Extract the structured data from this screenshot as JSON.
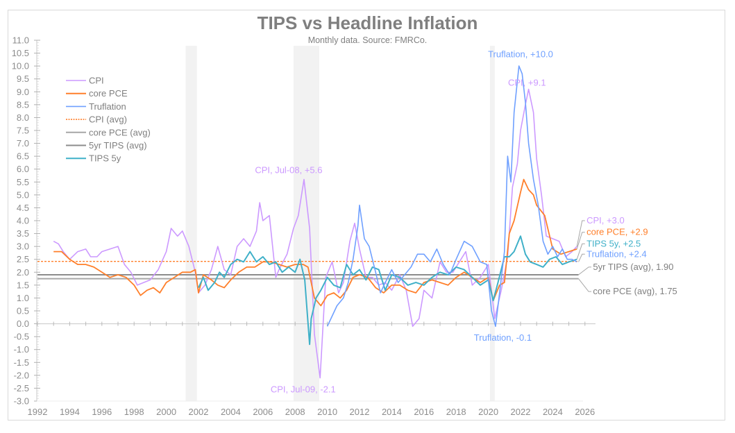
{
  "chart_data": {
    "type": "line",
    "title": "TIPS vs Headline Inflation",
    "subtitle": "Monthly data. Source: FMRCo.",
    "xlabel": "",
    "ylabel": "",
    "xlim": [
      1992,
      2027
    ],
    "ylim": [
      -3.0,
      11.0
    ],
    "y_ticks": [
      "11.0",
      "10.5",
      "10.0",
      "9.5",
      "9.0",
      "8.5",
      "8.0",
      "7.5",
      "7.0",
      "6.5",
      "6.0",
      "5.5",
      "5.0",
      "4.5",
      "4.0",
      "3.5",
      "3.0",
      "2.5",
      "2.0",
      "1.5",
      "1.0",
      "0.5",
      "0.0",
      "-0.5",
      "-1.0",
      "-1.5",
      "-2.0",
      "-2.5",
      "-3.0"
    ],
    "x_ticks": [
      "1992",
      "1994",
      "1996",
      "1998",
      "2000",
      "2002",
      "2004",
      "2006",
      "2008",
      "2010",
      "2012",
      "2014",
      "2016",
      "2018",
      "2020",
      "2022",
      "2024",
      "2026"
    ],
    "grid": false,
    "legend_position": "top-left",
    "recessions": [
      [
        2001.2,
        2001.9
      ],
      [
        2007.9,
        2009.5
      ],
      [
        2020.1,
        2020.4
      ]
    ],
    "legend": [
      {
        "name": "CPI",
        "color": "#cc99ff",
        "style": "solid"
      },
      {
        "name": "core PCE",
        "color": "#ff7f2a",
        "style": "solid"
      },
      {
        "name": "Truflation",
        "color": "#6fa0ff",
        "style": "solid"
      },
      {
        "name": "CPI (avg)",
        "color": "#ff7f2a",
        "style": "dotted"
      },
      {
        "name": "core PCE (avg)",
        "color": "#a6a6a6",
        "style": "solid"
      },
      {
        "name": "5yr TIPS (avg)",
        "color": "#8c8c8c",
        "style": "solid"
      },
      {
        "name": "TIPS 5y",
        "color": "#3fb0c8",
        "style": "solid"
      }
    ],
    "series": [
      {
        "name": "CPI",
        "color": "#cc99ff",
        "x": [
          1993.0,
          1993.3,
          1993.6,
          1994.0,
          1994.5,
          1995.0,
          1995.3,
          1995.7,
          1996.0,
          1996.5,
          1997.0,
          1997.4,
          1997.8,
          1998.2,
          1998.6,
          1999.0,
          1999.5,
          2000.0,
          2000.3,
          2000.7,
          2001.0,
          2001.4,
          2001.8,
          2002.0,
          2002.4,
          2002.8,
          2003.2,
          2003.6,
          2004.0,
          2004.4,
          2004.8,
          2005.2,
          2005.6,
          2005.8,
          2006.0,
          2006.4,
          2006.8,
          2007.0,
          2007.5,
          2007.9,
          2008.2,
          2008.55,
          2008.9,
          2009.2,
          2009.55,
          2009.9,
          2010.3,
          2010.7,
          2011.0,
          2011.4,
          2011.7,
          2012.0,
          2012.4,
          2012.8,
          2013.2,
          2013.6,
          2014.0,
          2014.5,
          2014.9,
          2015.3,
          2015.7,
          2016.0,
          2016.5,
          2017.0,
          2017.4,
          2017.8,
          2018.2,
          2018.6,
          2019.0,
          2019.5,
          2020.0,
          2020.4,
          2020.8,
          2021.2,
          2021.5,
          2021.8,
          2022.0,
          2022.3,
          2022.5,
          2022.8,
          2023.0,
          2023.3,
          2023.6,
          2024.0,
          2024.4,
          2024.8,
          2025.2,
          2025.5
        ],
        "values": [
          3.2,
          3.1,
          2.8,
          2.5,
          2.8,
          2.9,
          2.6,
          2.6,
          2.8,
          2.9,
          3.0,
          2.3,
          2.0,
          1.5,
          1.6,
          1.7,
          2.1,
          2.8,
          3.7,
          3.4,
          3.6,
          3.0,
          2.0,
          1.2,
          1.5,
          2.1,
          3.0,
          2.1,
          1.9,
          3.0,
          3.3,
          3.0,
          3.6,
          4.7,
          4.0,
          4.2,
          1.8,
          2.1,
          2.7,
          3.7,
          4.2,
          5.6,
          3.7,
          -0.4,
          -2.1,
          1.8,
          2.4,
          1.2,
          1.6,
          3.2,
          3.9,
          2.9,
          1.8,
          1.8,
          1.5,
          1.6,
          1.3,
          1.9,
          1.3,
          -0.1,
          0.2,
          1.3,
          1.0,
          2.4,
          2.0,
          2.0,
          2.4,
          2.8,
          1.5,
          1.8,
          2.3,
          0.2,
          1.3,
          2.6,
          5.3,
          6.2,
          7.5,
          8.5,
          9.1,
          8.2,
          6.4,
          5.0,
          3.4,
          3.3,
          3.2,
          2.6,
          2.8,
          3.0
        ]
      },
      {
        "name": "core PCE",
        "color": "#ff7f2a",
        "x": [
          1993.0,
          1993.5,
          1994.0,
          1994.5,
          1995.0,
          1995.5,
          1996.0,
          1996.5,
          1997.0,
          1997.5,
          1998.0,
          1998.4,
          1998.8,
          1999.2,
          1999.6,
          2000.0,
          2000.5,
          2001.0,
          2001.5,
          2001.8,
          2002.0,
          2002.3,
          2002.8,
          2003.2,
          2003.6,
          2004.0,
          2004.5,
          2005.0,
          2005.5,
          2006.0,
          2006.5,
          2007.0,
          2007.5,
          2008.0,
          2008.5,
          2008.8,
          2009.2,
          2009.6,
          2010.0,
          2010.4,
          2010.8,
          2011.2,
          2011.6,
          2012.0,
          2012.5,
          2013.0,
          2013.5,
          2014.0,
          2014.5,
          2015.0,
          2015.5,
          2016.0,
          2016.5,
          2017.0,
          2017.5,
          2018.0,
          2018.5,
          2019.0,
          2019.5,
          2020.0,
          2020.3,
          2020.7,
          2021.0,
          2021.3,
          2021.6,
          2022.0,
          2022.2,
          2022.5,
          2022.8,
          2023.0,
          2023.5,
          2024.0,
          2024.5,
          2025.0,
          2025.5
        ],
        "values": [
          2.8,
          2.8,
          2.5,
          2.3,
          2.3,
          2.2,
          2.0,
          1.8,
          1.9,
          1.8,
          1.5,
          1.1,
          1.3,
          1.4,
          1.2,
          1.6,
          1.8,
          2.0,
          2.0,
          2.1,
          1.2,
          1.9,
          1.7,
          1.5,
          1.4,
          1.7,
          2.0,
          2.2,
          2.2,
          2.4,
          2.4,
          2.3,
          2.2,
          2.3,
          2.3,
          2.2,
          1.0,
          0.7,
          1.1,
          1.2,
          1.0,
          1.3,
          1.8,
          1.9,
          1.8,
          1.4,
          1.2,
          1.5,
          1.5,
          1.3,
          1.2,
          1.6,
          1.7,
          1.6,
          1.5,
          1.8,
          2.0,
          1.8,
          1.6,
          1.8,
          0.9,
          1.5,
          1.6,
          3.5,
          4.0,
          5.1,
          5.6,
          5.2,
          5.0,
          4.6,
          4.2,
          2.9,
          2.7,
          2.8,
          2.9
        ]
      },
      {
        "name": "Truflation",
        "color": "#6fa0ff",
        "x": [
          2010.0,
          2010.3,
          2010.6,
          2011.0,
          2011.3,
          2011.6,
          2011.9,
          2012.0,
          2012.3,
          2012.6,
          2013.0,
          2013.3,
          2013.6,
          2014.0,
          2014.4,
          2014.8,
          2015.2,
          2015.6,
          2016.0,
          2016.4,
          2016.8,
          2017.2,
          2017.6,
          2018.0,
          2018.5,
          2019.0,
          2019.5,
          2019.9,
          2020.2,
          2020.45,
          2020.7,
          2021.0,
          2021.2,
          2021.4,
          2021.6,
          2021.9,
          2022.1,
          2022.3,
          2022.5,
          2022.8,
          2023.1,
          2023.4,
          2023.7,
          2024.0,
          2024.3,
          2024.6,
          2024.9,
          2025.2,
          2025.5
        ],
        "values": [
          -0.1,
          0.3,
          0.7,
          1.0,
          1.6,
          2.5,
          3.8,
          4.6,
          3.3,
          3.0,
          2.0,
          1.2,
          1.6,
          2.1,
          1.6,
          1.9,
          2.2,
          2.7,
          2.7,
          2.4,
          2.9,
          2.3,
          1.9,
          2.5,
          3.2,
          3.0,
          2.4,
          2.3,
          0.5,
          -0.1,
          1.2,
          2.8,
          6.5,
          5.5,
          8.2,
          10.0,
          9.7,
          8.6,
          7.0,
          5.6,
          4.6,
          3.2,
          2.7,
          3.0,
          2.6,
          2.9,
          2.5,
          2.5,
          2.4
        ]
      },
      {
        "name": "TIPS 5y",
        "color": "#3fb0c8",
        "x": [
          2002.0,
          2002.3,
          2002.6,
          2003.0,
          2003.3,
          2003.6,
          2004.0,
          2004.4,
          2004.8,
          2005.2,
          2005.6,
          2006.0,
          2006.4,
          2006.8,
          2007.2,
          2007.6,
          2008.0,
          2008.3,
          2008.6,
          2008.9,
          2009.0,
          2009.3,
          2009.6,
          2010.0,
          2010.4,
          2010.8,
          2011.2,
          2011.6,
          2012.0,
          2012.4,
          2012.8,
          2013.2,
          2013.6,
          2014.0,
          2014.5,
          2015.0,
          2015.5,
          2016.0,
          2016.5,
          2017.0,
          2017.5,
          2018.0,
          2018.5,
          2019.0,
          2019.5,
          2020.0,
          2020.3,
          2020.6,
          2021.0,
          2021.3,
          2021.6,
          2022.0,
          2022.3,
          2022.6,
          2023.0,
          2023.4,
          2023.8,
          2024.2,
          2024.6,
          2025.0,
          2025.5
        ],
        "values": [
          1.4,
          1.8,
          1.3,
          1.6,
          2.0,
          1.8,
          2.3,
          2.5,
          2.4,
          2.8,
          2.4,
          2.6,
          2.3,
          2.4,
          2.0,
          2.2,
          2.0,
          2.5,
          1.7,
          -0.8,
          0.2,
          1.0,
          1.3,
          1.8,
          1.5,
          1.4,
          2.3,
          1.9,
          2.1,
          1.7,
          2.2,
          2.1,
          1.3,
          1.9,
          1.8,
          1.5,
          1.6,
          1.5,
          1.8,
          2.0,
          1.9,
          2.2,
          2.1,
          1.8,
          1.5,
          1.7,
          0.9,
          1.6,
          2.6,
          2.6,
          2.8,
          3.4,
          2.7,
          2.4,
          2.3,
          2.2,
          2.5,
          2.6,
          2.3,
          2.4,
          2.5
        ]
      }
    ],
    "reference_lines": [
      {
        "name": "CPI (avg)",
        "value": 2.42,
        "color": "#ff7f2a",
        "style": "dotted"
      },
      {
        "name": "5yr TIPS (avg)",
        "value": 1.9,
        "color": "#8c8c8c",
        "style": "solid"
      },
      {
        "name": "core PCE (avg)",
        "value": 1.75,
        "color": "#a6a6a6",
        "style": "solid"
      }
    ],
    "annotations": [
      {
        "text": "Truflation, +10.0",
        "color": "#6fa0ff",
        "x": 2022.0,
        "y": 10.45
      },
      {
        "text": "CPI, +9.1",
        "color": "#cc99ff",
        "x": 2022.4,
        "y": 9.35
      },
      {
        "text": "CPI, Jul-08, +5.6",
        "color": "#cc99ff",
        "x": 2007.6,
        "y": 5.95
      },
      {
        "text": "CPI, Jul-09, -2.1",
        "color": "#cc99ff",
        "x": 2008.5,
        "y": -2.55
      },
      {
        "text": "Truflation, -0.1",
        "color": "#6fa0ff",
        "x": 2020.9,
        "y": -0.55
      },
      {
        "text": "CPI, +3.0",
        "color": "#cc99ff",
        "x": 2026.1,
        "y": 4.0
      },
      {
        "text": "core PCE, +2.9",
        "color": "#ff7f2a",
        "x": 2026.1,
        "y": 3.55
      },
      {
        "text": "TIPS 5y, +2.5",
        "color": "#3fb0c8",
        "x": 2026.1,
        "y": 3.1
      },
      {
        "text": "Truflation, +2.4",
        "color": "#6fa0ff",
        "x": 2026.1,
        "y": 2.7
      },
      {
        "text": "5yr TIPS (avg), 1.90",
        "color": "#7f7f7f",
        "x": 2026.5,
        "y": 2.2
      },
      {
        "text": "core PCE (avg), 1.75",
        "color": "#7f7f7f",
        "x": 2026.5,
        "y": 1.25
      }
    ]
  }
}
